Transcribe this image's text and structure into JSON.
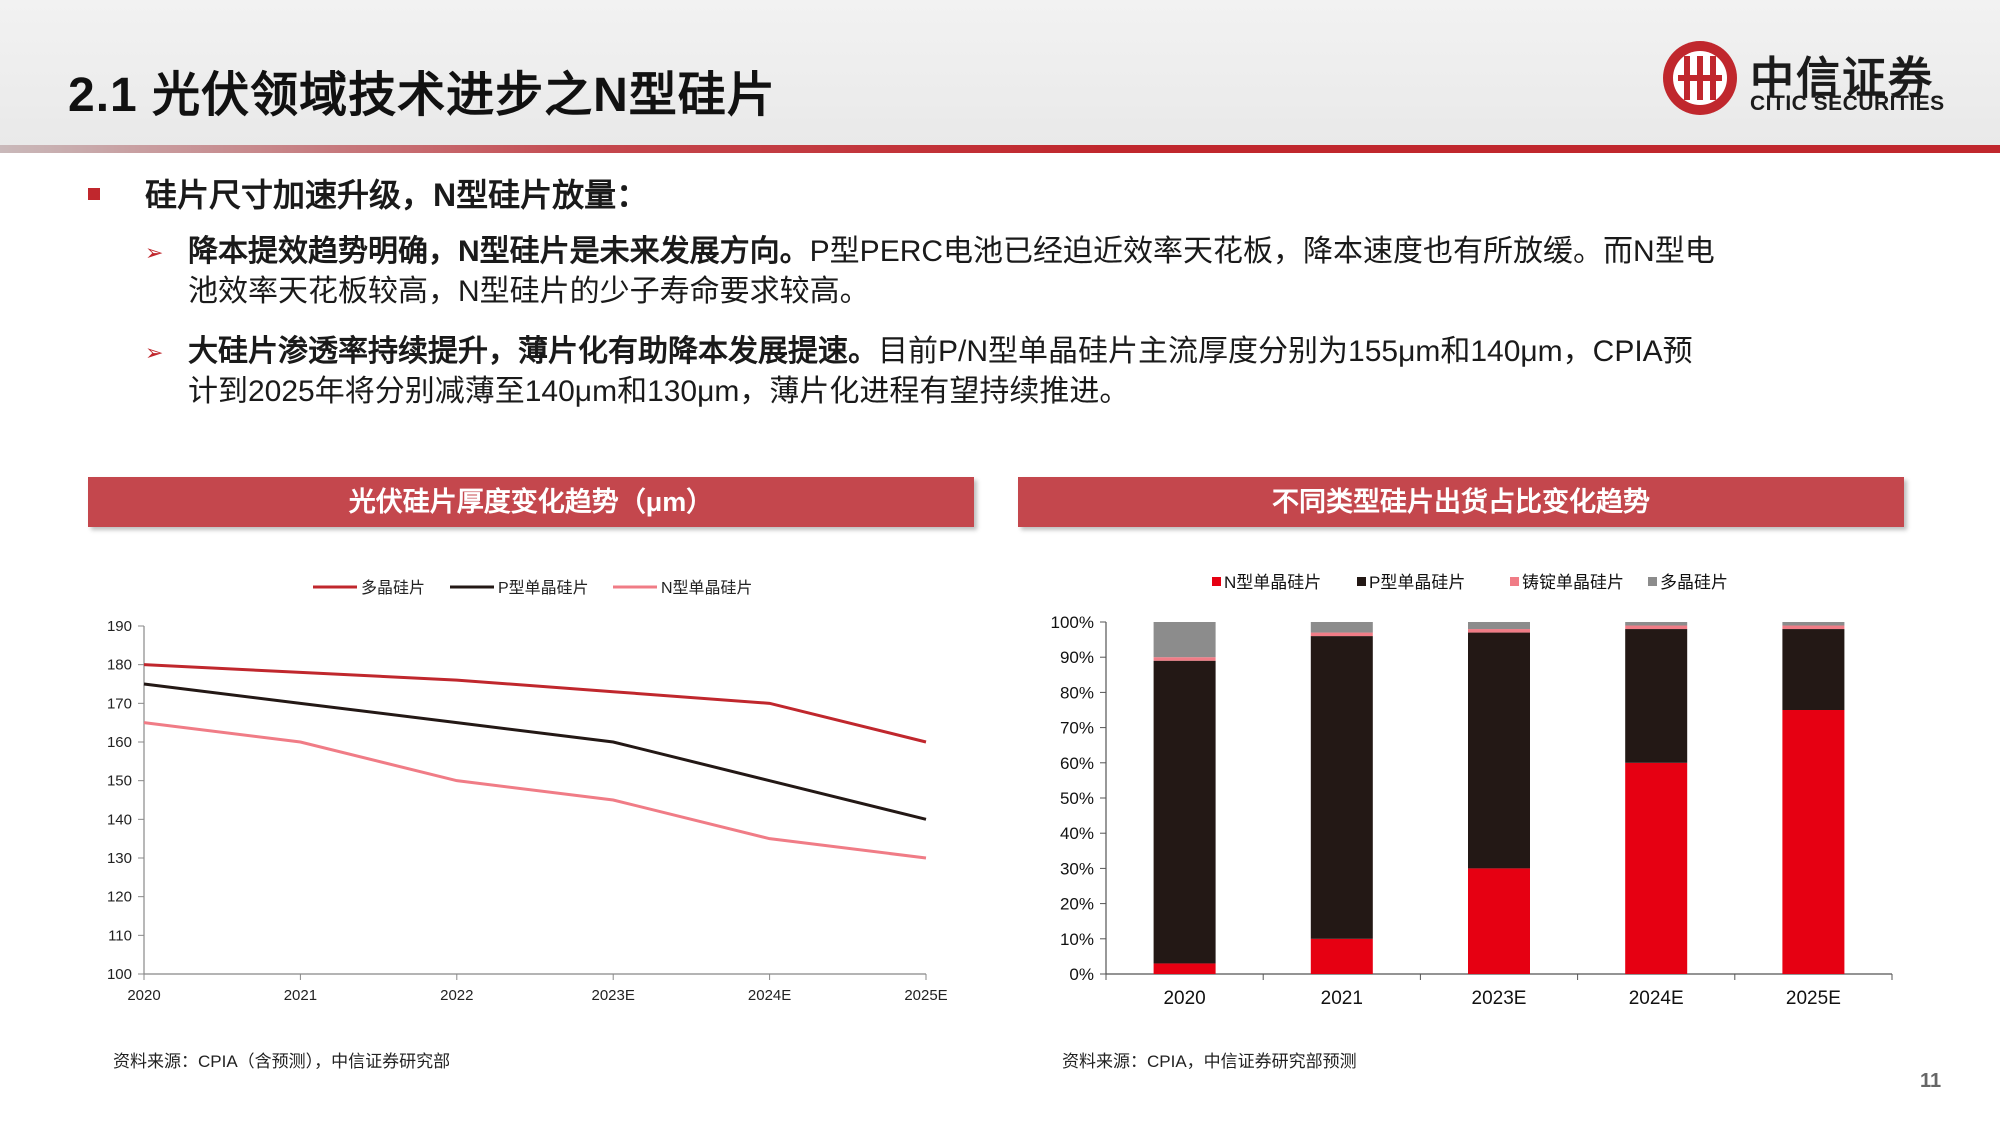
{
  "title": "2.1 光伏领域技术进步之N型硅片",
  "logo": {
    "cn": "中信证券",
    "en": "CITIC SECURITIES"
  },
  "bullet": "硅片尺寸加速升级，N型硅片放量：",
  "sub1": {
    "bold": "降本提效趋势明确，N型硅片是未来发展方向。",
    "line1_rest": "P型PERC电池已经迫近效率天花板，降本速度也有所放缓。而N型电",
    "line2": "池效率天花板较高，N型硅片的少子寿命要求较高。"
  },
  "sub2": {
    "bold": "大硅片渗透率持续提升，薄片化有助降本发展提速。",
    "line1_rest": "目前P/N型单晶硅片主流厚度分别为155μm和140μm，CPIA预",
    "line2": "计到2025年将分别减薄至140μm和130μm，薄片化进程有望持续推进。"
  },
  "colors": {
    "accent": "#c0272d",
    "panel": "#c4474d",
    "black": "#231815",
    "pink": "#f07c86",
    "gray": "#8c8c8c",
    "red": "#e60012"
  },
  "left_panel": {
    "header": "光伏硅片厚度变化趋势（μm）",
    "source": "资料来源：CPIA（含预测），中信证券研究部"
  },
  "right_panel": {
    "header": "不同类型硅片出货占比变化趋势",
    "source": "资料来源：CPIA，中信证券研究部预测"
  },
  "page_number": "11",
  "chart_data": [
    {
      "type": "line",
      "title": "光伏硅片厚度变化趋势（μm）",
      "x": [
        "2020",
        "2021",
        "2022",
        "2023E",
        "2024E",
        "2025E"
      ],
      "ylim": [
        100,
        190
      ],
      "yticks": [
        100,
        110,
        120,
        130,
        140,
        150,
        160,
        170,
        180,
        190
      ],
      "legend": "top",
      "series": [
        {
          "name": "多晶硅片",
          "color": "#c0272d",
          "values": [
            180,
            178,
            176,
            173,
            170,
            160
          ]
        },
        {
          "name": "P型单晶硅片",
          "color": "#231815",
          "values": [
            175,
            170,
            165,
            160,
            150,
            140
          ]
        },
        {
          "name": "N型单晶硅片",
          "color": "#f07c86",
          "values": [
            165,
            160,
            150,
            145,
            135,
            130
          ]
        }
      ]
    },
    {
      "type": "bar",
      "stacked": true,
      "title": "不同类型硅片出货占比变化趋势",
      "categories": [
        "2020",
        "2021",
        "2023E",
        "2024E",
        "2025E"
      ],
      "ylim": [
        0,
        100
      ],
      "yticks": [
        "0%",
        "10%",
        "20%",
        "30%",
        "40%",
        "50%",
        "60%",
        "70%",
        "80%",
        "90%",
        "100%"
      ],
      "legend": "top",
      "series": [
        {
          "name": "N型单晶硅片",
          "color": "#e60012",
          "values": [
            3,
            10,
            30,
            60,
            75
          ]
        },
        {
          "name": "P型单晶硅片",
          "color": "#231815",
          "values": [
            86,
            86,
            67,
            38,
            23
          ]
        },
        {
          "name": "铸锭单晶硅片",
          "color": "#f07c86",
          "values": [
            1,
            1,
            1,
            1,
            1
          ]
        },
        {
          "name": "多晶硅片",
          "color": "#8c8c8c",
          "values": [
            10,
            3,
            2,
            1,
            1
          ]
        }
      ]
    }
  ]
}
